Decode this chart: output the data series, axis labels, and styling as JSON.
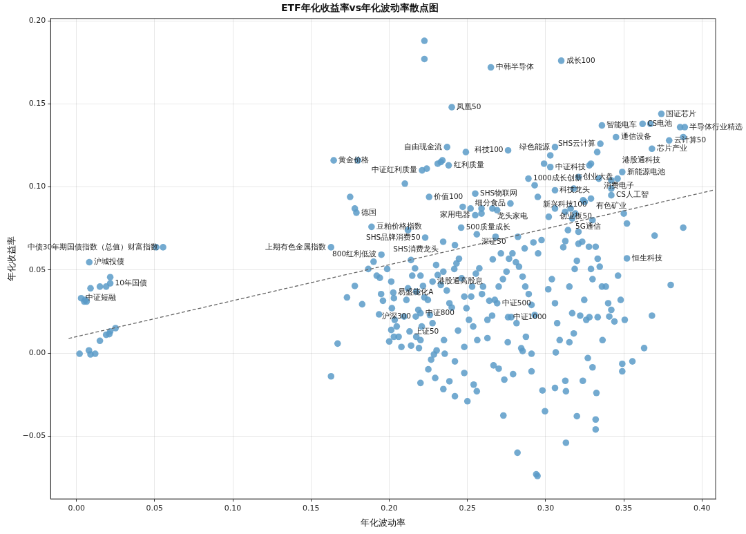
{
  "chart_data": {
    "type": "scatter",
    "title": "ETF年化收益率vs年化波动率散点图",
    "xlabel": "年化波动率",
    "ylabel": "年化收益率",
    "grid": true,
    "xlim": [
      -0.0165,
      0.4087
    ],
    "ylim": [
      -0.0878,
      0.2014
    ],
    "xticks": [
      {
        "value": 0,
        "label": "0.00"
      },
      {
        "value": 0.05,
        "label": "0.05"
      },
      {
        "value": 0.1,
        "label": "0.10"
      },
      {
        "value": 0.15,
        "label": "0.15"
      },
      {
        "value": 0.2,
        "label": "0.20"
      },
      {
        "value": 0.25,
        "label": "0.25"
      },
      {
        "value": 0.3,
        "label": "0.30"
      },
      {
        "value": 0.35,
        "label": "0.35"
      },
      {
        "value": 0.4,
        "label": "0.40"
      }
    ],
    "yticks": [
      {
        "value": -0.05,
        "label": "−0.05"
      },
      {
        "value": 0,
        "label": "0.00"
      },
      {
        "value": 0.05,
        "label": "0.05"
      },
      {
        "value": 0.1,
        "label": "0.10"
      },
      {
        "value": 0.15,
        "label": "0.15"
      },
      {
        "value": 0.2,
        "label": "0.20"
      }
    ],
    "series": [
      {
        "color": "#5b9bc8",
        "marker": "circle",
        "x": [
          0.2225,
          0.2225,
          0.265,
          0.31,
          0.24,
          0.374,
          0.336,
          0.362,
          0.367,
          0.386,
          0.389,
          0.345,
          0.335,
          0.379,
          0.388,
          0.368,
          0.306,
          0.276,
          0.237,
          0.249,
          0.1645,
          0.18,
          0.238,
          0.231,
          0.233,
          0.234,
          0.221,
          0.224,
          0.303,
          0.299,
          0.303,
          0.333,
          0.328,
          0.329,
          0.349,
          0.289,
          0.293,
          0.21,
          0.321,
          0.334,
          0.342,
          0.346,
          0.175,
          0.255,
          0.2255,
          0.179,
          0.178,
          0.306,
          0.318,
          0.342,
          0.342,
          0.295,
          0.329,
          0.324,
          0.325,
          0.2775,
          0.266,
          0.269,
          0.259,
          0.252,
          0.247,
          0.255,
          0.259,
          0.306,
          0.316,
          0.3125,
          0.319,
          0.1887,
          0.212,
          0.246,
          0.256,
          0.268,
          0.223,
          0.2345,
          0.242,
          0.1628,
          0.195,
          0.051,
          0.0554,
          0.0082,
          0.0216,
          0.0216,
          0.009,
          0.015,
          0.019,
          0.003,
          0.0056,
          0.005,
          0.0065,
          0.002,
          0.008,
          0.009,
          0.012,
          0.015,
          0.019,
          0.0216,
          0.021,
          0.025,
          0.2026,
          0.2277,
          0.269,
          0.22,
          0.217,
          0.213,
          0.276,
          0.352,
          0.1628,
          0.167,
          0.388,
          0.3697,
          0.38,
          0.368,
          0.363,
          0.3555,
          0.349,
          0.349,
          0.352,
          0.35,
          0.282,
          0.294,
          0.2948,
          0.313,
          0.332,
          0.332,
          0.32,
          0.2996,
          0.273,
          0.3325,
          0.327,
          0.173,
          0.178,
          0.1827,
          0.1866,
          0.19,
          0.192,
          0.194,
          0.1948,
          0.1935,
          0.196,
          0.1987,
          0.2013,
          0.203,
          0.2017,
          0.2035,
          0.2048,
          0.206,
          0.2078,
          0.2095,
          0.211,
          0.212,
          0.2147,
          0.2139,
          0.2165,
          0.2173,
          0.2186,
          0.22,
          0.2208,
          0.219,
          0.2,
          0.2013,
          0.203,
          0.214,
          0.2173,
          0.22,
          0.2216,
          0.2225,
          0.2247,
          0.226,
          0.2277,
          0.23,
          0.231,
          0.233,
          0.2346,
          0.2368,
          0.2385,
          0.24,
          0.2416,
          0.243,
          0.2446,
          0.2463,
          0.248,
          0.2494,
          0.251,
          0.2524,
          0.253,
          0.2554,
          0.2576,
          0.2593,
          0.2537,
          0.244,
          0.235,
          0.2303,
          0.2286,
          0.2268,
          0.225,
          0.22,
          0.2294,
          0.2346,
          0.2385,
          0.242,
          0.248,
          0.25,
          0.254,
          0.256,
          0.242,
          0.2355,
          0.248,
          0.2563,
          0.2628,
          0.2658,
          0.2675,
          0.27,
          0.2727,
          0.275,
          0.2766,
          0.2788,
          0.281,
          0.283,
          0.2853,
          0.287,
          0.2892,
          0.291,
          0.293,
          0.2952,
          0.2974,
          0.2866,
          0.2823,
          0.278,
          0.2814,
          0.2844,
          0.2874,
          0.291,
          0.2758,
          0.2667,
          0.27,
          0.2736,
          0.2792,
          0.291,
          0.298,
          0.2853,
          0.2628,
          0.264,
          0.26,
          0.2662,
          0.2714,
          0.2922,
          0.3017,
          0.304,
          0.306,
          0.3074,
          0.309,
          0.3065,
          0.3113,
          0.3126,
          0.3143,
          0.3152,
          0.317,
          0.3186,
          0.32,
          0.321,
          0.3234,
          0.3247,
          0.326,
          0.3277,
          0.329,
          0.33,
          0.332,
          0.3333,
          0.3346,
          0.336,
          0.3385,
          0.34,
          0.342,
          0.344,
          0.3463,
          0.348,
          0.3506,
          0.3152,
          0.318,
          0.3126,
          0.306,
          0.313,
          0.3238,
          0.33,
          0.3221,
          0.328,
          0.3333,
          0.3407,
          0.3364,
          0.302,
          0.317,
          0.33,
          0.321
        ],
        "values": [
          0.188,
          0.177,
          0.172,
          0.176,
          0.148,
          0.144,
          0.137,
          0.138,
          0.138,
          0.136,
          0.136,
          0.13,
          0.126,
          0.128,
          0.13,
          0.123,
          0.124,
          0.122,
          0.124,
          0.121,
          0.116,
          0.116,
          0.113,
          0.114,
          0.115,
          0.116,
          0.11,
          0.111,
          0.112,
          0.114,
          0.119,
          0.121,
          0.113,
          0.114,
          0.109,
          0.105,
          0.101,
          0.102,
          0.106,
          0.105,
          0.104,
          0.105,
          0.094,
          0.096,
          0.094,
          0.0845,
          0.087,
          0.098,
          0.099,
          0.099,
          0.095,
          0.094,
          0.093,
          0.092,
          0.091,
          0.09,
          0.087,
          0.086,
          0.087,
          0.087,
          0.088,
          0.083,
          0.084,
          0.087,
          0.087,
          0.085,
          0.084,
          0.076,
          0.074,
          0.0755,
          0.0715,
          0.07,
          0.0695,
          0.067,
          0.065,
          0.0637,
          0.0592,
          0.0637,
          0.0637,
          0.0547,
          0.042,
          0.0457,
          0.039,
          0.04,
          0.04,
          0.033,
          0.032,
          0.031,
          0.031,
          -0.0004,
          0.0016,
          -0.0008,
          -0.0004,
          0.0074,
          0.011,
          0.013,
          0.0114,
          0.015,
          0.0364,
          0.043,
          0.03,
          0.024,
          0.022,
          0.013,
          0.0216,
          0.057,
          -0.014,
          0.0057,
          0.0755,
          0.0707,
          0.041,
          0.0225,
          0.003,
          -0.005,
          -0.0065,
          -0.011,
          0.078,
          0.084,
          -0.06,
          -0.073,
          -0.074,
          -0.054,
          -0.04,
          -0.046,
          -0.038,
          -0.035,
          -0.0376,
          -0.024,
          -0.003,
          0.0335,
          0.0404,
          0.0294,
          0.0506,
          0.055,
          0.0466,
          0.0453,
          0.0355,
          0.0233,
          0.0315,
          0.0506,
          0.043,
          0.033,
          0.027,
          0.02,
          0.016,
          0.0098,
          0.0037,
          0.022,
          0.032,
          0.039,
          0.0466,
          0.056,
          0.051,
          0.037,
          0.026,
          0.0078,
          0.016,
          0.003,
          0.007,
          0.0139,
          0.0098,
          0.0045,
          0.0098,
          0.0466,
          0.0404,
          0.0335,
          0.032,
          0.023,
          0.018,
          0.053,
          0.047,
          0.041,
          0.049,
          0.0376,
          0.03,
          0.0274,
          0.0506,
          0.054,
          0.0568,
          0.045,
          0.034,
          0.027,
          0.02,
          0.034,
          0.04,
          0.0478,
          0.051,
          0.0355,
          0.016,
          0.0135,
          0.0078,
          0.0016,
          -0.0008,
          -0.004,
          -0.0098,
          -0.018,
          -0.015,
          -0.0217,
          -0.017,
          -0.026,
          -0.012,
          -0.029,
          -0.019,
          -0.023,
          -0.005,
          -0.0004,
          0.0037,
          0.0078,
          0.009,
          0.0225,
          0.032,
          0.04,
          0.0445,
          0.049,
          0.0568,
          0.06,
          0.0547,
          0.052,
          0.046,
          0.04,
          0.0355,
          0.029,
          0.0229,
          0.06,
          0.068,
          0.063,
          0.07,
          0.0216,
          0.018,
          0.0029,
          0.0098,
          -0.0004,
          0.0065,
          -0.0074,
          -0.0094,
          -0.016,
          -0.0127,
          -0.011,
          -0.0225,
          0.0012,
          0.02,
          0.0315,
          0.04,
          0.0564,
          0.06,
          0.0666,
          0.0384,
          0.0445,
          0.03,
          0.018,
          0.0078,
          0.0004,
          0.0637,
          0.0674,
          0.074,
          0.04,
          0.024,
          0.0506,
          0.0555,
          0.0658,
          0.067,
          0.032,
          0.02,
          0.064,
          0.0506,
          0.0445,
          0.064,
          0.0568,
          0.052,
          0.04,
          0.04,
          0.03,
          0.026,
          0.019,
          0.0466,
          0.032,
          0.02,
          0.0065,
          0.0118,
          -0.0167,
          -0.021,
          -0.023,
          -0.0167,
          -0.0086,
          0.0225,
          0.0216,
          0.0216,
          0.022,
          0.0078,
          0.082,
          0.081,
          0.08,
          0.073
        ]
      },
      {
        "type": "line",
        "color": "#666666",
        "line_style": "dashed",
        "x": [
          -0.005,
          0.407
        ],
        "values": [
          0.0088,
          0.098
        ]
      }
    ],
    "annotations": [
      {
        "text": "中韩半导体",
        "x": 0.265,
        "y": 0.172
      },
      {
        "text": "成长100",
        "x": 0.31,
        "y": 0.176
      },
      {
        "text": "凤凰50",
        "x": 0.24,
        "y": 0.148
      },
      {
        "text": "国证芯片",
        "x": 0.374,
        "y": 0.144
      },
      {
        "text": "智能电车",
        "x": 0.336,
        "y": 0.137
      },
      {
        "text": "CS电池",
        "x": 0.362,
        "y": 0.138
      },
      {
        "text": "半导体行业精选",
        "x": 0.389,
        "y": 0.136
      },
      {
        "text": "通信设备",
        "x": 0.345,
        "y": 0.13
      },
      {
        "text": "SHS云计算",
        "x": 0.335,
        "y": 0.126
      },
      {
        "text": "云计算50",
        "x": 0.379,
        "y": 0.128
      },
      {
        "text": "芯片产业",
        "x": 0.368,
        "y": 0.123
      },
      {
        "text": "绿色能源",
        "x": 0.306,
        "y": 0.124
      },
      {
        "text": "科技100",
        "x": 0.276,
        "y": 0.122
      },
      {
        "text": "自由现金流",
        "x": 0.237,
        "y": 0.124
      },
      {
        "text": "黄金价格",
        "x": 0.1645,
        "y": 0.116
      },
      {
        "text": "红利质量",
        "x": 0.238,
        "y": 0.113
      },
      {
        "text": "中证红利质量",
        "x": 0.221,
        "y": 0.11
      },
      {
        "text": "中证科技",
        "x": 0.303,
        "y": 0.112
      },
      {
        "text": "新能源电池",
        "x": 0.349,
        "y": 0.109
      },
      {
        "text": "1000成长创新",
        "x": 0.289,
        "y": 0.105
      },
      {
        "text": "创业大盘",
        "x": 0.321,
        "y": 0.106
      },
      {
        "text": "消费电子",
        "x": 0.334,
        "y": 0.105
      },
      {
        "text": "港股通科技",
        "x": 0.346,
        "y": 0.105
      },
      {
        "text": "SHS物联网",
        "x": 0.255,
        "y": 0.096
      },
      {
        "text": "价值100",
        "x": 0.2255,
        "y": 0.094
      },
      {
        "text": "德国",
        "x": 0.179,
        "y": 0.0845
      },
      {
        "text": "科技龙头",
        "x": 0.306,
        "y": 0.098
      },
      {
        "text": "CS人工智",
        "x": 0.342,
        "y": 0.095
      },
      {
        "text": "新兴科技100",
        "x": 0.295,
        "y": 0.094
      },
      {
        "text": "有色矿业",
        "x": 0.329,
        "y": 0.093
      },
      {
        "text": "细分食品",
        "x": 0.2775,
        "y": 0.09
      },
      {
        "text": "龙头家电",
        "x": 0.266,
        "y": 0.087
      },
      {
        "text": "家用电器",
        "x": 0.255,
        "y": 0.083
      },
      {
        "text": "创业板50",
        "x": 0.306,
        "y": 0.087
      },
      {
        "text": "5G通信",
        "x": 0.316,
        "y": 0.087
      },
      {
        "text": "豆粕价格指数",
        "x": 0.1887,
        "y": 0.076
      },
      {
        "text": "500质量成长",
        "x": 0.246,
        "y": 0.0755
      },
      {
        "text": "深证50",
        "x": 0.256,
        "y": 0.0715
      },
      {
        "text": "SHS品牌消费50",
        "x": 0.223,
        "y": 0.0695
      },
      {
        "text": "SHS消费龙头",
        "x": 0.2345,
        "y": 0.067
      },
      {
        "text": "上期有色金属指数",
        "x": 0.1628,
        "y": 0.0637
      },
      {
        "text": "800红利低波",
        "x": 0.195,
        "y": 0.0592
      },
      {
        "text": "中债30年期国债指数（总值）财富指数",
        "x": 0.0554,
        "y": 0.0637
      },
      {
        "text": "沪城投债",
        "x": 0.0082,
        "y": 0.0547
      },
      {
        "text": "10年国债",
        "x": 0.0216,
        "y": 0.042
      },
      {
        "text": "中证短融",
        "x": 0.003,
        "y": 0.033
      },
      {
        "text": "易盛能化A",
        "x": 0.2026,
        "y": 0.0364
      },
      {
        "text": "港股通高股息",
        "x": 0.2277,
        "y": 0.043
      },
      {
        "text": "中证500",
        "x": 0.269,
        "y": 0.03
      },
      {
        "text": "中证800",
        "x": 0.22,
        "y": 0.024
      },
      {
        "text": "沪深300",
        "x": 0.217,
        "y": 0.022
      },
      {
        "text": "上证50",
        "x": 0.213,
        "y": 0.013
      },
      {
        "text": "中证1000",
        "x": 0.276,
        "y": 0.0216
      },
      {
        "text": "恒生科技",
        "x": 0.352,
        "y": 0.057
      }
    ]
  }
}
